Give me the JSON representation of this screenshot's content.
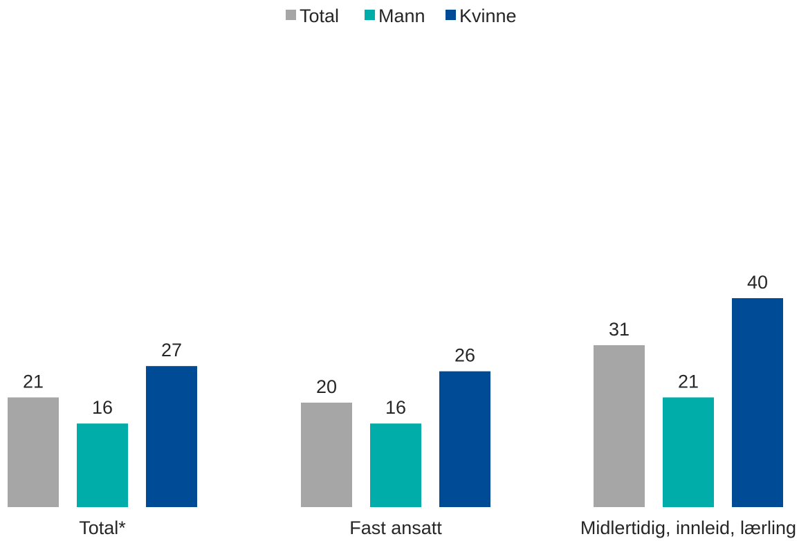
{
  "chart_data": {
    "type": "bar",
    "categories": [
      "Total*",
      "Fast ansatt",
      "Midlertidig, innleid, lærling"
    ],
    "series": [
      {
        "name": "Total",
        "color": "#A6A6A6",
        "values": [
          21,
          20,
          31
        ]
      },
      {
        "name": "Mann",
        "color": "#00ADA9",
        "values": [
          16,
          16,
          21
        ]
      },
      {
        "name": "Kvinne",
        "color": "#004B96",
        "values": [
          27,
          26,
          40
        ]
      }
    ],
    "legend_position": "top-center",
    "grid": false,
    "y_axis_visible": false,
    "ylim": [
      0,
      100
    ]
  }
}
